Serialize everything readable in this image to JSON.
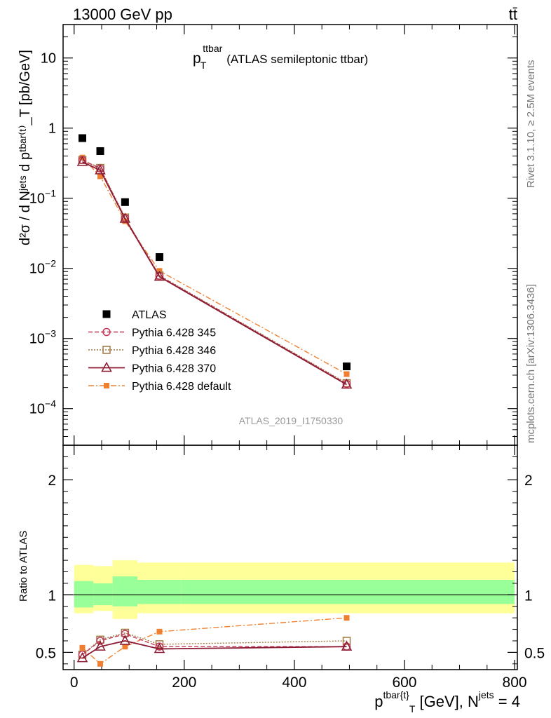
{
  "header": {
    "energy_label": "13000 GeV pp",
    "process_label": "tt̄"
  },
  "side_labels": {
    "rivet": "Rivet 3.1.10, ≥ 2.5M events",
    "mcplots": "mcplots.cern.ch [arXiv:1306.3436]"
  },
  "colors": {
    "atlas": "#000000",
    "p345": "#c0395a",
    "p346": "#a07840",
    "p370": "#8b1a33",
    "pdefault": "#f08030",
    "band_inner": "#99ff99",
    "band_outer": "#ffff99"
  },
  "chart_data": {
    "type": "scatter",
    "title_main": "p",
    "title_sup": "ttbar",
    "title_sub": "T",
    "title_rest": "(ATLAS semileptonic ttbar)",
    "analysis_label": "ATLAS_2019_I1750330",
    "x": [
      15,
      47.5,
      92.5,
      155,
      495
    ],
    "bin_edges": [
      0,
      35,
      70,
      115,
      195,
      800
    ],
    "xlim": [
      -20,
      805
    ],
    "xticks": [
      0,
      200,
      400,
      600,
      800
    ],
    "xticklabels": [
      "0",
      "200",
      "400",
      "600",
      "800"
    ],
    "xlabel": {
      "main": "p",
      "sup": "tbar{t}",
      "sub": "T",
      "rest": " [GeV], N",
      "jets_sup": "jets",
      "tail": " = 4"
    },
    "upper": {
      "yscale": "log",
      "ylim": [
        3e-05,
        30
      ],
      "yticks": [
        0.0001,
        0.001,
        0.01,
        0.1,
        1,
        10
      ],
      "yticklabels": [
        {
          "base": "10",
          "exp": "−4"
        },
        {
          "base": "10",
          "exp": "−3"
        },
        {
          "base": "10",
          "exp": "−2"
        },
        {
          "base": "10",
          "exp": "−1"
        },
        {
          "base": "1",
          "exp": ""
        },
        {
          "base": "10",
          "exp": ""
        }
      ],
      "ylabel": "d²σ / d Nʲᵉᵗˢ d pᵗᵇᵃʳ⁽ᵗ⁾_T [pb/GeV]"
    },
    "lower": {
      "yscale": "linear",
      "ylim": [
        0.35,
        2.3
      ],
      "yticks": [
        0.5,
        1,
        2
      ],
      "yticklabels": [
        "0.5",
        "1",
        "2"
      ],
      "ylabel": "Ratio to ATLAS",
      "band_inner": [
        [
          0.89,
          1.12
        ],
        [
          0.91,
          1.1
        ],
        [
          0.9,
          1.16
        ],
        [
          0.92,
          1.13
        ],
        [
          0.92,
          1.13
        ]
      ],
      "band_outer": [
        [
          0.84,
          1.26
        ],
        [
          0.86,
          1.25
        ],
        [
          0.79,
          1.3
        ],
        [
          0.84,
          1.28
        ],
        [
          0.84,
          1.28
        ]
      ]
    },
    "series": [
      {
        "name": "ATLAS",
        "key": "atlas",
        "values": [
          0.72,
          0.47,
          0.088,
          0.0145,
          0.0004
        ],
        "ratio": [
          1,
          1,
          1,
          1,
          1
        ]
      },
      {
        "name": "Pythia 6.428 345",
        "key": "p345",
        "values": [
          0.35,
          0.265,
          0.052,
          0.0078,
          0.000225
        ],
        "ratio": [
          0.48,
          0.6,
          0.66,
          0.55,
          0.55
        ]
      },
      {
        "name": "Pythia 6.428 346",
        "key": "p346",
        "values": [
          0.35,
          0.27,
          0.053,
          0.0079,
          0.00023
        ],
        "ratio": [
          0.48,
          0.61,
          0.67,
          0.57,
          0.6
        ]
      },
      {
        "name": "Pythia 6.428 370",
        "key": "p370",
        "values": [
          0.33,
          0.25,
          0.051,
          0.0076,
          0.00022
        ],
        "ratio": [
          0.45,
          0.55,
          0.6,
          0.53,
          0.55
        ]
      },
      {
        "name": "Pythia 6.428 default",
        "key": "pdefault",
        "values": [
          0.38,
          0.205,
          0.047,
          0.0092,
          0.00031
        ],
        "ratio": [
          0.54,
          0.4,
          0.55,
          0.68,
          0.8
        ]
      }
    ]
  }
}
